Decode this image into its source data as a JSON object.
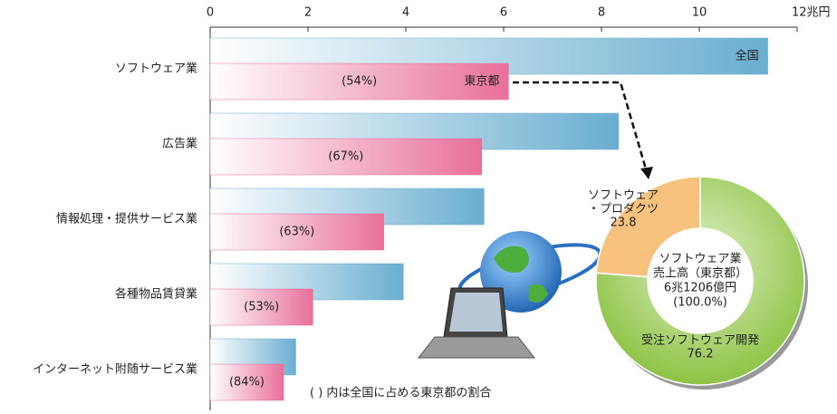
{
  "chart_data": [
    {
      "type": "bar",
      "categories": [
        "ソフトウェア業",
        "広告業",
        "情報処理・提供サービス業",
        "各種物品賃貸業",
        "インターネット附随サービス業"
      ],
      "series": [
        {
          "name": "全国",
          "color": "#6aaed0",
          "values": [
            11.4,
            8.35,
            5.6,
            3.95,
            1.75
          ]
        },
        {
          "name": "東京都",
          "color": "#e8709a",
          "values": [
            6.1,
            5.55,
            3.55,
            2.1,
            1.5
          ]
        }
      ],
      "shares": [
        "(54%)",
        "(67%)",
        "(63%)",
        "(53%)",
        "(84%)"
      ],
      "xlim": [
        0,
        12
      ],
      "xticks": [
        0,
        2,
        4,
        6,
        8,
        10,
        {
          "value": 12,
          "label": "12兆円"
        }
      ],
      "note": "(   ) 内は全国に占める東京都の割合"
    },
    {
      "type": "donut",
      "labels": [
        [
          "ソフトウェア",
          "・プロダクツ"
        ],
        [
          "受注ソフトウェア開発"
        ]
      ],
      "values": [
        23.8,
        76.2
      ],
      "colors": [
        "#f6c27e",
        "#8cc23c"
      ],
      "center": [
        "ソフトウェア業",
        "売上高（東京都）",
        "6兆1206億円",
        "(100.0%)"
      ]
    }
  ]
}
